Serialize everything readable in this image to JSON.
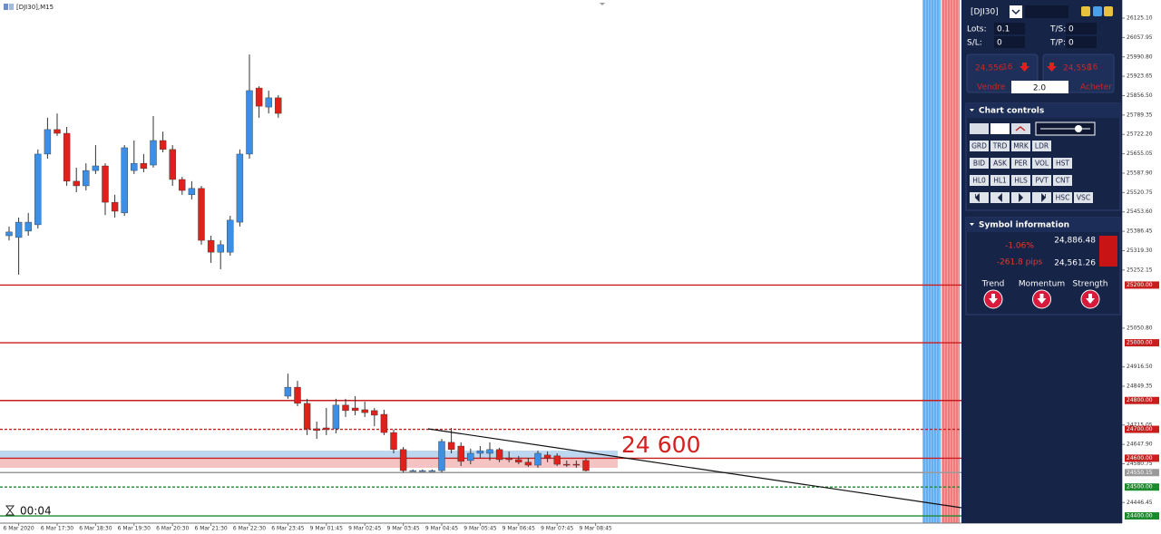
{
  "chart_data": {
    "type": "candlestick",
    "title": "[DJI30],M15",
    "categories": [
      null,
      "6 Mar 2020",
      null,
      null,
      null,
      "6 Mar 17:30",
      null,
      null,
      null,
      "6 Mar 18:30",
      null,
      null,
      null,
      "6 Mar 19:30",
      null,
      null,
      null,
      "6 Mar 20:30",
      null,
      null,
      null,
      "6 Mar 21:30",
      null,
      null,
      null,
      "6 Mar 22:30",
      null,
      null,
      null,
      "6 Mar 23:45",
      null,
      null,
      null,
      "9 Mar 01:45",
      null,
      null,
      null,
      "9 Mar 02:45",
      null,
      null,
      null,
      "9 Mar 03:45",
      null,
      null,
      null,
      "9 Mar 04:45",
      null,
      null,
      null,
      "9 Mar 05:45",
      null,
      null,
      null,
      "9 Mar 06:45",
      null,
      null,
      null,
      "9 Mar 07:45",
      null,
      null,
      null,
      "9 Mar 08:45"
    ],
    "open": [
      25371,
      25365,
      25387,
      25409,
      25654,
      25739,
      25726,
      25560,
      25544,
      25597,
      25613,
      25487,
      25450,
      25597,
      25622,
      25616,
      25701,
      25670,
      25566,
      25513,
      25535,
      25355,
      25314,
      25314,
      25418,
      25654,
      25883,
      25817,
      25849,
      24815,
      24846,
      24790,
      24702,
      24705,
      24702,
      24784,
      24774,
      24768,
      24765,
      24752,
      24689,
      24630,
      24557,
      24557,
      24557,
      24557,
      24655,
      24642,
      24592,
      24617,
      24617,
      24630,
      24601,
      24595,
      24586,
      24576,
      24611,
      24608,
      24579,
      24579,
      24592,
      null
    ],
    "high": [
      25403,
      25434,
      25450,
      25670,
      25780,
      25795,
      25748,
      25607,
      25622,
      25685,
      25622,
      25513,
      25685,
      25701,
      25654,
      25786,
      25732,
      25685,
      25575,
      25560,
      25544,
      25371,
      25355,
      25440,
      25670,
      25999,
      25889,
      25874,
      25858,
      24893,
      24868,
      24806,
      24727,
      24774,
      24806,
      24806,
      24815,
      24796,
      24774,
      24768,
      24699,
      24639,
      24561,
      24561,
      24561,
      24667,
      24705,
      24655,
      24633,
      24642,
      24655,
      24636,
      24623,
      24608,
      24601,
      24626,
      24623,
      24617,
      24592,
      24592,
      24601,
      null
    ],
    "low": [
      25355,
      25236,
      25371,
      25396,
      25638,
      25717,
      25544,
      25522,
      25528,
      25585,
      25443,
      25434,
      25440,
      25585,
      25591,
      25607,
      25660,
      25544,
      25513,
      25497,
      25340,
      25277,
      25255,
      25302,
      25403,
      25638,
      25780,
      25795,
      25780,
      24806,
      24780,
      24680,
      24667,
      24680,
      24686,
      24743,
      24749,
      24743,
      24711,
      24680,
      24617,
      24551,
      24554,
      24554,
      24554,
      24551,
      24617,
      24573,
      24579,
      24601,
      24592,
      24586,
      24586,
      24579,
      24570,
      24567,
      24586,
      24573,
      24570,
      24567,
      24554,
      null
    ],
    "close": [
      25384,
      25418,
      25418,
      25654,
      25739,
      25726,
      25560,
      25544,
      25597,
      25613,
      25487,
      25456,
      25676,
      25622,
      25604,
      25701,
      25670,
      25566,
      25528,
      25535,
      25355,
      25314,
      25340,
      25425,
      25654,
      25874,
      25820,
      25849,
      25795,
      24846,
      24790,
      24702,
      24696,
      24699,
      24784,
      24765,
      24765,
      24758,
      24749,
      24689,
      24630,
      24557,
      24557,
      24557,
      24557,
      24658,
      24630,
      24589,
      24617,
      24626,
      24630,
      24595,
      24595,
      24586,
      24576,
      24617,
      24601,
      24579,
      24576,
      24576,
      24557,
      null
    ],
    "up_color": "#3d8fe6",
    "down_color": "#e0201b",
    "ylim": [
      24375,
      26188
    ],
    "yticks": [
      {
        "value": 26125.1,
        "label": "26125.10"
      },
      {
        "value": 26057.95,
        "label": "26057.95"
      },
      {
        "value": 25990.8,
        "label": "25990.80"
      },
      {
        "value": 25923.65,
        "label": "25923.65"
      },
      {
        "value": 25856.5,
        "label": "25856.50"
      },
      {
        "value": 25789.35,
        "label": "25789.35"
      },
      {
        "value": 25722.2,
        "label": "25722.20"
      },
      {
        "value": 25655.05,
        "label": "25655.05"
      },
      {
        "value": 25587.9,
        "label": "25587.90"
      },
      {
        "value": 25520.75,
        "label": "25520.75"
      },
      {
        "value": 25453.6,
        "label": "25453.60"
      },
      {
        "value": 25386.45,
        "label": "25386.45"
      },
      {
        "value": 25319.3,
        "label": "25319.30"
      },
      {
        "value": 25252.15,
        "label": "25252.15"
      },
      {
        "value": 25050.8,
        "label": "25050.80"
      },
      {
        "value": 24916.5,
        "label": "24916.50"
      },
      {
        "value": 24849.35,
        "label": "24849.35"
      },
      {
        "value": 24715.05,
        "label": "24715.05"
      },
      {
        "value": 24647.9,
        "label": "24647.90"
      },
      {
        "value": 24580.75,
        "label": "24580.75"
      },
      {
        "value": 24446.45,
        "label": "24446.45"
      }
    ],
    "levels": [
      {
        "value": 25200,
        "label": "25200.00",
        "color": "#c81e1e",
        "dashed": false
      },
      {
        "value": 25000,
        "label": "25000.00",
        "color": "#c81e1e",
        "dashed": false
      },
      {
        "value": 24800,
        "label": "24800.00",
        "color": "#c81e1e",
        "dashed": false
      },
      {
        "value": 24700,
        "label": "24700.00",
        "color": "#c81e1e",
        "dashed": true
      },
      {
        "value": 24600,
        "label": "24600.00",
        "color": "#c81e1e",
        "dashed": false
      },
      {
        "value": 24550.15,
        "label": "24550.15",
        "color": "#9a9a9a",
        "dashed": false
      },
      {
        "value": 24500,
        "label": "24500.00",
        "color": "#1e8a2e",
        "dashed": true
      },
      {
        "value": 24400,
        "label": "24400.00",
        "color": "#1e8a2e",
        "dashed": false
      }
    ],
    "annotation": "24 600",
    "timer": "00:04"
  },
  "panel": {
    "symbol": "[DJI30]",
    "lots_label": "Lots:",
    "lots": "0.1",
    "ts_label": "T/S:",
    "ts": "0",
    "sl_label": "S/L:",
    "sl": "0",
    "tp_label": "T/P:",
    "tp": "0",
    "sell_price": "24,556",
    "sell_pips": "16",
    "sell_label": "Vendre",
    "buy_price": "24,558",
    "buy_pips": "16",
    "buy_label": "Acheter",
    "volume": "2.0",
    "chart_controls": "Chart controls",
    "buttons": [
      [
        "GRD",
        "TRD",
        "MRK",
        "LDR"
      ],
      [
        "BID",
        "ASK",
        "PER",
        "VOL",
        "HST"
      ],
      [
        "HL0",
        "HL1",
        "HLS",
        "PVT",
        "CNT"
      ],
      [
        "HSC",
        "VSC"
      ]
    ],
    "symbol_info": "Symbol information",
    "change": "-1.06%",
    "pips": "-261.8 pips",
    "high": "24,886.48",
    "low": "24,561.26",
    "indicators": [
      "Trend",
      "Momentum",
      "Strength"
    ]
  }
}
